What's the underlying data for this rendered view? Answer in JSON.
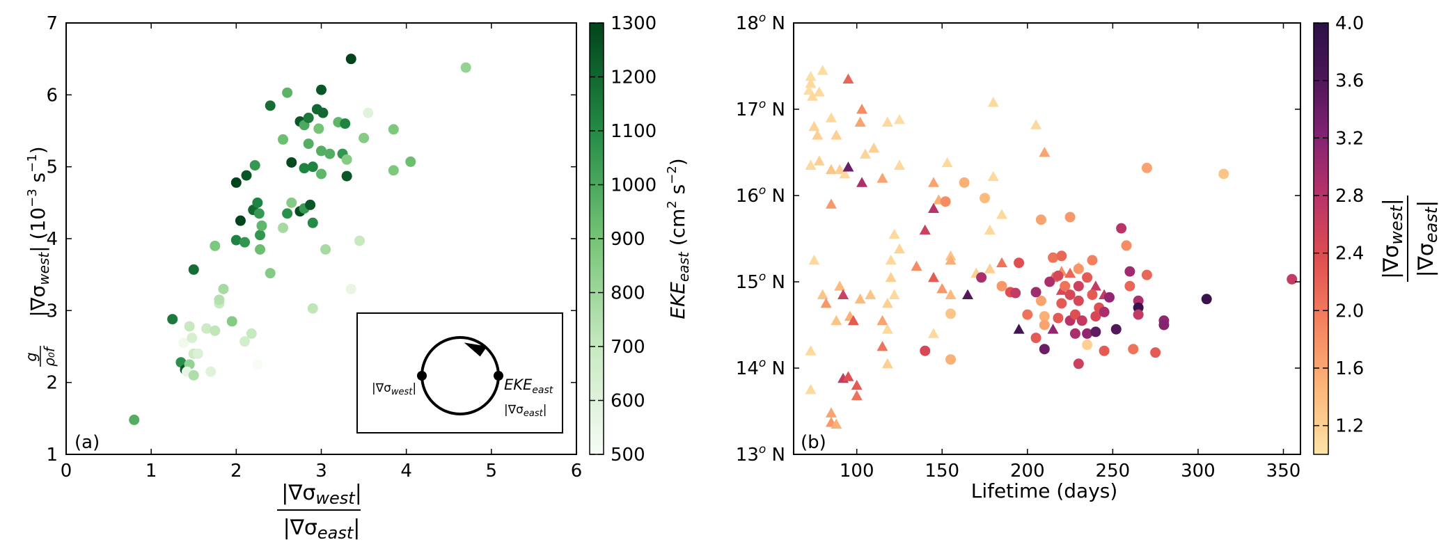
{
  "chart_data": [
    {
      "type": "scatter",
      "panel_label": "(a)",
      "xlabel": "|∇σwest| / |∇σeast|",
      "ylabel": "g/(ρ0 f) |∇σwest| (10−3 s−1)",
      "xlim": [
        0,
        6
      ],
      "ylim": [
        1,
        7
      ],
      "xticks": [
        0,
        1,
        2,
        3,
        4,
        5,
        6
      ],
      "yticks": [
        1,
        2,
        3,
        4,
        5,
        6,
        7
      ],
      "grid": false,
      "colorbar": {
        "label": "EKEeast (cm2 s−2)",
        "min": 500,
        "max": 1300,
        "ticks": [
          500,
          600,
          700,
          800,
          900,
          1000,
          1100,
          1200,
          1300
        ],
        "colormap": "Greens",
        "colors": [
          "#f7fcf5",
          "#c7e9c0",
          "#74c476",
          "#238b45",
          "#00441b"
        ]
      },
      "inset": {
        "left_label": "|∇σwest|",
        "right_label_top": "EKEeast",
        "right_label_bottom": "|∇σeast|"
      },
      "points": [
        [
          0.8,
          1.48,
          980
        ],
        [
          1.25,
          2.88,
          1150
        ],
        [
          1.35,
          2.28,
          1080
        ],
        [
          1.4,
          2.18,
          1250
        ],
        [
          1.45,
          2.25,
          820
        ],
        [
          1.38,
          2.55,
          520
        ],
        [
          1.42,
          2.15,
          560
        ],
        [
          1.45,
          2.78,
          700
        ],
        [
          1.48,
          2.62,
          640
        ],
        [
          1.5,
          2.4,
          680
        ],
        [
          1.55,
          2.4,
          620
        ],
        [
          1.5,
          2.1,
          760
        ],
        [
          1.5,
          3.57,
          1180
        ],
        [
          1.65,
          2.75,
          680
        ],
        [
          1.7,
          2.15,
          600
        ],
        [
          1.75,
          2.72,
          720
        ],
        [
          1.75,
          3.9,
          880
        ],
        [
          1.8,
          3.1,
          700
        ],
        [
          1.8,
          3.15,
          750
        ],
        [
          1.85,
          3.3,
          780
        ],
        [
          1.95,
          2.85,
          860
        ],
        [
          2.0,
          4.78,
          1300
        ],
        [
          2.0,
          3.98,
          1120
        ],
        [
          2.05,
          4.25,
          1300
        ],
        [
          2.1,
          3.95,
          1060
        ],
        [
          2.12,
          4.88,
          1250
        ],
        [
          2.1,
          2.57,
          650
        ],
        [
          2.18,
          2.68,
          700
        ],
        [
          2.2,
          4.4,
          1200
        ],
        [
          2.22,
          5.02,
          1050
        ],
        [
          2.25,
          4.5,
          1120
        ],
        [
          2.27,
          4.35,
          1050
        ],
        [
          2.28,
          4.05,
          1060
        ],
        [
          2.28,
          3.85,
          920
        ],
        [
          2.3,
          4.18,
          950
        ],
        [
          2.25,
          2.25,
          500
        ],
        [
          2.4,
          5.85,
          1180
        ],
        [
          2.4,
          3.52,
          860
        ],
        [
          2.55,
          4.15,
          780
        ],
        [
          2.55,
          5.38,
          920
        ],
        [
          2.6,
          6.03,
          960
        ],
        [
          2.6,
          4.35,
          1080
        ],
        [
          2.65,
          5.06,
          1280
        ],
        [
          2.65,
          4.5,
          860
        ],
        [
          2.75,
          5.63,
          1250
        ],
        [
          2.75,
          4.38,
          1280
        ],
        [
          2.8,
          5.58,
          1000
        ],
        [
          2.8,
          4.42,
          1050
        ],
        [
          2.8,
          4.98,
          1120
        ],
        [
          2.85,
          5.68,
          1150
        ],
        [
          2.85,
          5.32,
          980
        ],
        [
          2.87,
          4.47,
          1250
        ],
        [
          2.9,
          4.22,
          1100
        ],
        [
          2.9,
          3.03,
          720
        ],
        [
          2.9,
          5.0,
          1120
        ],
        [
          2.95,
          5.8,
          1200
        ],
        [
          2.97,
          5.53,
          900
        ],
        [
          3.0,
          6.07,
          1250
        ],
        [
          3.0,
          4.9,
          950
        ],
        [
          3.0,
          5.22,
          980
        ],
        [
          3.02,
          5.75,
          1200
        ],
        [
          3.05,
          3.85,
          780
        ],
        [
          3.1,
          5.18,
          980
        ],
        [
          3.2,
          5.62,
          950
        ],
        [
          3.25,
          5.18,
          1060
        ],
        [
          3.28,
          5.6,
          1120
        ],
        [
          3.3,
          4.87,
          1250
        ],
        [
          3.3,
          5.1,
          860
        ],
        [
          3.35,
          6.5,
          1300
        ],
        [
          3.35,
          3.3,
          560
        ],
        [
          3.45,
          3.97,
          700
        ],
        [
          3.5,
          5.4,
          860
        ],
        [
          3.55,
          5.75,
          600
        ],
        [
          3.85,
          5.52,
          880
        ],
        [
          3.85,
          4.95,
          880
        ],
        [
          4.05,
          5.07,
          920
        ],
        [
          4.7,
          6.38,
          820
        ]
      ]
    },
    {
      "type": "scatter",
      "panel_label": "(b)",
      "xlabel": "Lifetime (days)",
      "ylabel": "",
      "xlim": [
        63,
        360
      ],
      "ylim": [
        13,
        18
      ],
      "xticks": [
        100,
        150,
        200,
        250,
        300,
        350
      ],
      "yticks": [
        13,
        14,
        15,
        16,
        17,
        18
      ],
      "ytick_labels": [
        "13o N",
        "14o N",
        "15o N",
        "16o N",
        "17o N",
        "18o N"
      ],
      "grid": false,
      "markers": {
        "triangle": "triangle",
        "circle": "circle"
      },
      "colorbar": {
        "label": "|∇σwest| / |∇σeast|",
        "min": 1.0,
        "max": 4.0,
        "ticks": [
          1.2,
          1.6,
          2.0,
          2.4,
          2.8,
          3.2,
          3.6,
          4.0
        ],
        "colormap": "magma_r",
        "colors": [
          "#fde3a7",
          "#fcb87a",
          "#f58560",
          "#e05050",
          "#b8326a",
          "#7d2270",
          "#4a1655",
          "#2c1145"
        ]
      },
      "points": [
        [
          "t",
          73,
          17.38,
          1.05
        ],
        [
          "t",
          73,
          17.3,
          1.1
        ],
        [
          "t",
          72,
          17.22,
          1.05
        ],
        [
          "t",
          74,
          17.15,
          1.1
        ],
        [
          "t",
          78,
          17.2,
          1.1
        ],
        [
          "t",
          80,
          17.45,
          1.05
        ],
        [
          "t",
          75,
          16.8,
          1.15
        ],
        [
          "t",
          77,
          16.7,
          1.2
        ],
        [
          "t",
          73,
          16.35,
          1.1
        ],
        [
          "t",
          78,
          16.4,
          1.2
        ],
        [
          "t",
          85,
          16.9,
          1.1
        ],
        [
          "t",
          88,
          16.7,
          1.2
        ],
        [
          "t",
          85,
          16.3,
          1.3
        ],
        [
          "t",
          90,
          16.3,
          1.2
        ],
        [
          "t",
          93,
          16.25,
          1.1
        ],
        [
          "t",
          95,
          17.35,
          2.1
        ],
        [
          "t",
          95,
          16.33,
          3.3
        ],
        [
          "t",
          103,
          17.0,
          1.8
        ],
        [
          "t",
          102,
          16.85,
          1.6
        ],
        [
          "t",
          110,
          16.55,
          1.2
        ],
        [
          "t",
          118,
          16.85,
          1.1
        ],
        [
          "t",
          125,
          16.88,
          1.05
        ],
        [
          "t",
          105,
          16.48,
          1.15
        ],
        [
          "t",
          103,
          16.15,
          2.8
        ],
        [
          "t",
          115,
          16.2,
          1.6
        ],
        [
          "t",
          125,
          16.35,
          1.1
        ],
        [
          "t",
          145,
          16.15,
          1.6
        ],
        [
          "t",
          153,
          16.38,
          1.1
        ],
        [
          "t",
          180,
          17.08,
          1.1
        ],
        [
          "t",
          205,
          16.82,
          1.1
        ],
        [
          "t",
          210,
          16.5,
          1.6
        ],
        [
          "t",
          180,
          16.22,
          1.1
        ],
        [
          "t",
          178,
          15.6,
          1.1
        ],
        [
          "t",
          185,
          15.78,
          1.1
        ],
        [
          "t",
          85,
          15.9,
          1.7
        ],
        [
          "t",
          148,
          15.95,
          1.5
        ],
        [
          "t",
          145,
          15.85,
          2.7
        ],
        [
          "t",
          140,
          15.6,
          2.5
        ],
        [
          "t",
          122,
          15.55,
          1.1
        ],
        [
          "t",
          125,
          15.38,
          1.15
        ],
        [
          "t",
          120,
          15.25,
          1.1
        ],
        [
          "t",
          120,
          15.05,
          1.2
        ],
        [
          "t",
          122,
          14.85,
          1.1
        ],
        [
          "t",
          135,
          15.18,
          1.8
        ],
        [
          "t",
          155,
          15.3,
          1.3
        ],
        [
          "t",
          155,
          15.25,
          1.5
        ],
        [
          "t",
          170,
          15.1,
          1.2
        ],
        [
          "t",
          178,
          15.15,
          1.2
        ],
        [
          "t",
          185,
          15.22,
          2.0
        ],
        [
          "t",
          75,
          15.25,
          1.1
        ],
        [
          "t",
          80,
          14.85,
          1.3
        ],
        [
          "t",
          82,
          14.75,
          1.7
        ],
        [
          "t",
          90,
          14.95,
          1.4
        ],
        [
          "t",
          92,
          14.85,
          2.5
        ],
        [
          "t",
          96,
          14.6,
          1.5
        ],
        [
          "t",
          98,
          14.55,
          2.2
        ],
        [
          "t",
          102,
          14.8,
          1.4
        ],
        [
          "t",
          108,
          14.85,
          1.3
        ],
        [
          "t",
          115,
          14.55,
          1.6
        ],
        [
          "t",
          118,
          14.75,
          1.2
        ],
        [
          "t",
          118,
          14.45,
          1.1
        ],
        [
          "t",
          115,
          14.25,
          2.0
        ],
        [
          "t",
          118,
          14.05,
          1.2
        ],
        [
          "t",
          88,
          14.55,
          1.3
        ],
        [
          "t",
          73,
          14.2,
          1.1
        ],
        [
          "t",
          92,
          13.88,
          2.6
        ],
        [
          "t",
          95,
          13.9,
          2.3
        ],
        [
          "t",
          100,
          13.8,
          2.2
        ],
        [
          "t",
          100,
          13.68,
          2.0
        ],
        [
          "t",
          85,
          13.48,
          1.6
        ],
        [
          "t",
          85,
          13.37,
          1.7
        ],
        [
          "t",
          88,
          13.35,
          1.5
        ],
        [
          "t",
          145,
          15.05,
          2.2
        ],
        [
          "t",
          150,
          14.92,
          1.7
        ],
        [
          "t",
          155,
          14.85,
          1.4
        ],
        [
          "t",
          165,
          14.85,
          3.5
        ],
        [
          "t",
          195,
          14.45,
          3.7
        ],
        [
          "t",
          215,
          14.45,
          3.0
        ],
        [
          "t",
          220,
          14.9,
          2.4
        ],
        [
          "t",
          215,
          15.05,
          2.0
        ],
        [
          "t",
          220,
          15.12,
          1.8
        ],
        [
          "t",
          225,
          15.1,
          2.1
        ],
        [
          "t",
          230,
          15.17,
          1.3
        ],
        [
          "t",
          240,
          14.95,
          2.6
        ],
        [
          "t",
          245,
          14.85,
          2.6
        ],
        [
          "t",
          73,
          13.75,
          1.1
        ],
        [
          "t",
          145,
          14.4,
          1.1
        ],
        [
          "c",
          140,
          14.2,
          2.4
        ],
        [
          "c",
          152,
          15.93,
          1.8
        ],
        [
          "c",
          155,
          14.63,
          1.3
        ],
        [
          "c",
          155,
          14.1,
          1.5
        ],
        [
          "c",
          163,
          16.15,
          1.5
        ],
        [
          "c",
          175,
          15.97,
          1.4
        ],
        [
          "c",
          173,
          15.05,
          2.8
        ],
        [
          "c",
          185,
          14.95,
          1.7
        ],
        [
          "c",
          190,
          14.88,
          2.3
        ],
        [
          "c",
          193,
          14.87,
          2.6
        ],
        [
          "c",
          195,
          15.22,
          2.3
        ],
        [
          "c",
          208,
          15.72,
          1.6
        ],
        [
          "c",
          208,
          14.78,
          1.6
        ],
        [
          "c",
          210,
          14.6,
          1.5
        ],
        [
          "c",
          210,
          14.5,
          1.6
        ],
        [
          "c",
          205,
          14.35,
          2.2
        ],
        [
          "c",
          210,
          14.22,
          3.3
        ],
        [
          "c",
          213,
          15.0,
          2.8
        ],
        [
          "c",
          215,
          15.28,
          2.0
        ],
        [
          "c",
          218,
          15.07,
          2.4
        ],
        [
          "c",
          220,
          15.3,
          2.1
        ],
        [
          "c",
          220,
          14.75,
          2.2
        ],
        [
          "c",
          222,
          14.95,
          2.0
        ],
        [
          "c",
          225,
          14.55,
          2.7
        ],
        [
          "c",
          225,
          15.75,
          1.7
        ],
        [
          "c",
          225,
          14.85,
          2.4
        ],
        [
          "c",
          228,
          14.62,
          2.3
        ],
        [
          "c",
          230,
          15.15,
          1.7
        ],
        [
          "c",
          230,
          14.78,
          2.4
        ],
        [
          "c",
          230,
          14.95,
          2.5
        ],
        [
          "c",
          232,
          14.55,
          2.6
        ],
        [
          "c",
          235,
          15.05,
          2.2
        ],
        [
          "c",
          235,
          14.4,
          3.0
        ],
        [
          "c",
          235,
          14.27,
          1.2
        ],
        [
          "c",
          238,
          14.85,
          2.2
        ],
        [
          "c",
          238,
          15.25,
          1.9
        ],
        [
          "c",
          240,
          14.6,
          2.4
        ],
        [
          "c",
          240,
          14.42,
          3.4
        ],
        [
          "c",
          242,
          14.7,
          2.3
        ],
        [
          "c",
          245,
          14.65,
          2.8
        ],
        [
          "c",
          245,
          14.2,
          2.2
        ],
        [
          "c",
          248,
          14.82,
          3.0
        ],
        [
          "c",
          252,
          14.45,
          3.5
        ],
        [
          "c",
          255,
          15.62,
          2.7
        ],
        [
          "c",
          258,
          15.42,
          1.8
        ],
        [
          "c",
          260,
          15.12,
          2.9
        ],
        [
          "c",
          260,
          14.95,
          2.1
        ],
        [
          "c",
          262,
          14.22,
          2.0
        ],
        [
          "c",
          265,
          14.78,
          2.8
        ],
        [
          "c",
          265,
          14.7,
          3.8
        ],
        [
          "c",
          265,
          14.62,
          2.6
        ],
        [
          "c",
          270,
          16.32,
          1.6
        ],
        [
          "c",
          270,
          15.08,
          2.1
        ],
        [
          "c",
          275,
          14.18,
          2.2
        ],
        [
          "c",
          280,
          14.55,
          3.0
        ],
        [
          "c",
          280,
          14.5,
          3.1
        ],
        [
          "c",
          205,
          14.88,
          2.9
        ],
        [
          "c",
          200,
          14.62,
          2.0
        ],
        [
          "c",
          218,
          14.58,
          2.2
        ],
        [
          "c",
          228,
          14.4,
          2.8
        ],
        [
          "c",
          230,
          14.05,
          2.5
        ],
        [
          "c",
          305,
          14.8,
          3.8
        ],
        [
          "c",
          315,
          16.25,
          1.3
        ],
        [
          "c",
          355,
          15.03,
          2.6
        ]
      ]
    }
  ]
}
